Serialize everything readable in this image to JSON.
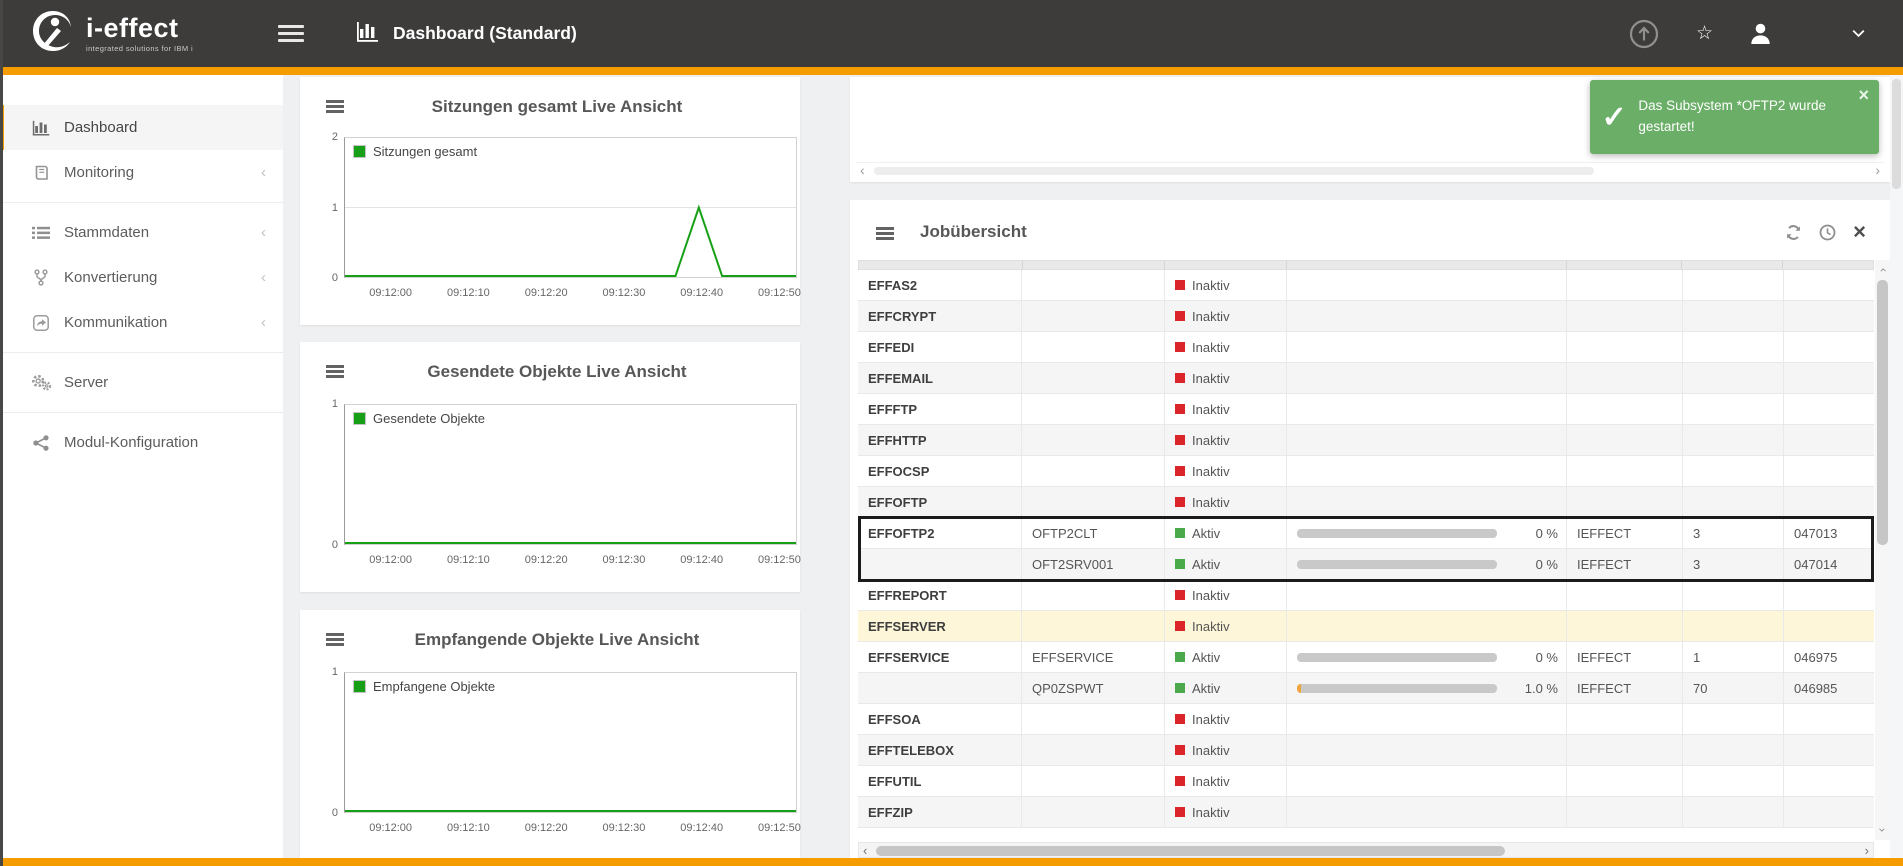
{
  "header": {
    "logo": "i-effect",
    "logo_sub": "integrated solutions for IBM i",
    "title": "Dashboard (Standard)"
  },
  "icons": {
    "chevron_left": "‹",
    "chevron_right": "›",
    "sidebar_collapse": "‹",
    "star": "☆",
    "close": "×",
    "check": "✓"
  },
  "sidebar": {
    "items": [
      {
        "label": "Dashboard",
        "icon": "bar-chart",
        "active": true,
        "chevron": false,
        "group_start": false
      },
      {
        "label": "Monitoring",
        "icon": "book",
        "active": false,
        "chevron": true,
        "group_start": false
      },
      {
        "label": "Stammdaten",
        "icon": "list",
        "active": false,
        "chevron": true,
        "group_start": true
      },
      {
        "label": "Konvertierung",
        "icon": "branch",
        "active": false,
        "chevron": true,
        "group_start": false
      },
      {
        "label": "Kommunikation",
        "icon": "share",
        "active": false,
        "chevron": true,
        "group_start": false
      },
      {
        "label": "Server",
        "icon": "gears",
        "active": false,
        "chevron": false,
        "group_start": true
      },
      {
        "label": "Modul-Konfiguration",
        "icon": "modules",
        "active": false,
        "chevron": false,
        "group_start": true
      }
    ]
  },
  "toast": {
    "message": "Das Subsystem *OFTP2 wurde gestartet!",
    "color": "#6aae67"
  },
  "chart_data": [
    {
      "type": "line",
      "title": "Sitzungen gesamt Live Ansicht",
      "legend": "Sitzungen gesamt",
      "color": "#17a017",
      "ymax": 2,
      "yticks": [
        2,
        1,
        0
      ],
      "x_range": [
        -6,
        52
      ],
      "xticks": [
        {
          "t": 0,
          "label": "09:12:00"
        },
        {
          "t": 10,
          "label": "09:12:10"
        },
        {
          "t": 20,
          "label": "09:12:20"
        },
        {
          "t": 30,
          "label": "09:12:30"
        },
        {
          "t": 40,
          "label": "09:12:40"
        },
        {
          "t": 50,
          "label": "09:12:50"
        }
      ],
      "points": [
        [
          -6,
          0
        ],
        [
          36.5,
          0
        ],
        [
          39.5,
          1
        ],
        [
          42.5,
          0
        ],
        [
          52,
          0
        ]
      ]
    },
    {
      "type": "line",
      "title": "Gesendete Objekte Live Ansicht",
      "legend": "Gesendete Objekte",
      "color": "#17a017",
      "ymax": 1,
      "yticks": [
        1,
        0
      ],
      "x_range": [
        -6,
        52
      ],
      "xticks": [
        {
          "t": 0,
          "label": "09:12:00"
        },
        {
          "t": 10,
          "label": "09:12:10"
        },
        {
          "t": 20,
          "label": "09:12:20"
        },
        {
          "t": 30,
          "label": "09:12:30"
        },
        {
          "t": 40,
          "label": "09:12:40"
        },
        {
          "t": 50,
          "label": "09:12:50"
        }
      ],
      "points": [
        [
          -6,
          0
        ],
        [
          52,
          0
        ]
      ]
    },
    {
      "type": "line",
      "title": "Empfangende Objekte Live Ansicht",
      "legend": "Empfangene Objekte",
      "color": "#17a017",
      "ymax": 1,
      "yticks": [
        1,
        0
      ],
      "x_range": [
        -6,
        52
      ],
      "xticks": [
        {
          "t": 0,
          "label": "09:12:00"
        },
        {
          "t": 10,
          "label": "09:12:10"
        },
        {
          "t": 20,
          "label": "09:12:20"
        },
        {
          "t": 30,
          "label": "09:12:30"
        },
        {
          "t": 40,
          "label": "09:12:40"
        },
        {
          "t": 50,
          "label": "09:12:50"
        }
      ],
      "points": [
        [
          -6,
          0
        ],
        [
          52,
          0
        ]
      ]
    }
  ],
  "job_panel": {
    "title": "Jobübersicht",
    "rows": [
      {
        "name": "EFFAS2",
        "job": "",
        "status": "Inaktiv",
        "active": false,
        "progress": null,
        "progress_pct": 0,
        "user": "",
        "count": "",
        "number": "",
        "shade": "white",
        "selected": false
      },
      {
        "name": "EFFCRYPT",
        "job": "",
        "status": "Inaktiv",
        "active": false,
        "progress": null,
        "progress_pct": 0,
        "user": "",
        "count": "",
        "number": "",
        "shade": "gray",
        "selected": false
      },
      {
        "name": "EFFEDI",
        "job": "",
        "status": "Inaktiv",
        "active": false,
        "progress": null,
        "progress_pct": 0,
        "user": "",
        "count": "",
        "number": "",
        "shade": "white",
        "selected": false
      },
      {
        "name": "EFFEMAIL",
        "job": "",
        "status": "Inaktiv",
        "active": false,
        "progress": null,
        "progress_pct": 0,
        "user": "",
        "count": "",
        "number": "",
        "shade": "gray",
        "selected": false
      },
      {
        "name": "EFFFTP",
        "job": "",
        "status": "Inaktiv",
        "active": false,
        "progress": null,
        "progress_pct": 0,
        "user": "",
        "count": "",
        "number": "",
        "shade": "white",
        "selected": false
      },
      {
        "name": "EFFHTTP",
        "job": "",
        "status": "Inaktiv",
        "active": false,
        "progress": null,
        "progress_pct": 0,
        "user": "",
        "count": "",
        "number": "",
        "shade": "gray",
        "selected": false
      },
      {
        "name": "EFFOCSP",
        "job": "",
        "status": "Inaktiv",
        "active": false,
        "progress": null,
        "progress_pct": 0,
        "user": "",
        "count": "",
        "number": "",
        "shade": "white",
        "selected": false
      },
      {
        "name": "EFFOFTP",
        "job": "",
        "status": "Inaktiv",
        "active": false,
        "progress": null,
        "progress_pct": 0,
        "user": "",
        "count": "",
        "number": "",
        "shade": "gray",
        "selected": false
      },
      {
        "name": "EFFOFTP2",
        "job": "OFTP2CLT",
        "status": "Aktiv",
        "active": true,
        "progress": "0 %",
        "progress_pct": 0,
        "user": "IEFFECT",
        "count": "3",
        "number": "047013",
        "shade": "white",
        "selected": true
      },
      {
        "name": "",
        "job": "OFT2SRV001",
        "status": "Aktiv",
        "active": true,
        "progress": "0 %",
        "progress_pct": 0,
        "user": "IEFFECT",
        "count": "3",
        "number": "047014",
        "shade": "gray",
        "selected": true
      },
      {
        "name": "EFFREPORT",
        "job": "",
        "status": "Inaktiv",
        "active": false,
        "progress": null,
        "progress_pct": 0,
        "user": "",
        "count": "",
        "number": "",
        "shade": "white",
        "selected": false
      },
      {
        "name": "EFFSERVER",
        "job": "",
        "status": "Inaktiv",
        "active": false,
        "progress": null,
        "progress_pct": 0,
        "user": "",
        "count": "",
        "number": "",
        "shade": "yellow",
        "selected": false
      },
      {
        "name": "EFFSERVICE",
        "job": "EFFSERVICE",
        "status": "Aktiv",
        "active": true,
        "progress": "0 %",
        "progress_pct": 0,
        "user": "IEFFECT",
        "count": "1",
        "number": "046975",
        "shade": "white",
        "selected": false
      },
      {
        "name": "",
        "job": "QP0ZSPWT",
        "status": "Aktiv",
        "active": true,
        "progress": "1.0 %",
        "progress_pct": 1,
        "user": "IEFFECT",
        "count": "70",
        "number": "046985",
        "shade": "gray",
        "selected": false
      },
      {
        "name": "EFFSOA",
        "job": "",
        "status": "Inaktiv",
        "active": false,
        "progress": null,
        "progress_pct": 0,
        "user": "",
        "count": "",
        "number": "",
        "shade": "white",
        "selected": false
      },
      {
        "name": "EFFTELEBOX",
        "job": "",
        "status": "Inaktiv",
        "active": false,
        "progress": null,
        "progress_pct": 0,
        "user": "",
        "count": "",
        "number": "",
        "shade": "gray",
        "selected": false
      },
      {
        "name": "EFFUTIL",
        "job": "",
        "status": "Inaktiv",
        "active": false,
        "progress": null,
        "progress_pct": 0,
        "user": "",
        "count": "",
        "number": "",
        "shade": "white",
        "selected": false
      },
      {
        "name": "EFFZIP",
        "job": "",
        "status": "Inaktiv",
        "active": false,
        "progress": null,
        "progress_pct": 0,
        "user": "",
        "count": "",
        "number": "",
        "shade": "gray",
        "selected": false
      }
    ]
  },
  "colors": {
    "accent_orange": "#f59c00",
    "header_bg": "#3d3c3b",
    "status_red": "#da252b",
    "status_green": "#4ba84b",
    "toast_green": "#6aae67",
    "row_warning": "#fdf6d8",
    "chart_line": "#17a017",
    "progress_fill_orange": "#f0a43c"
  }
}
